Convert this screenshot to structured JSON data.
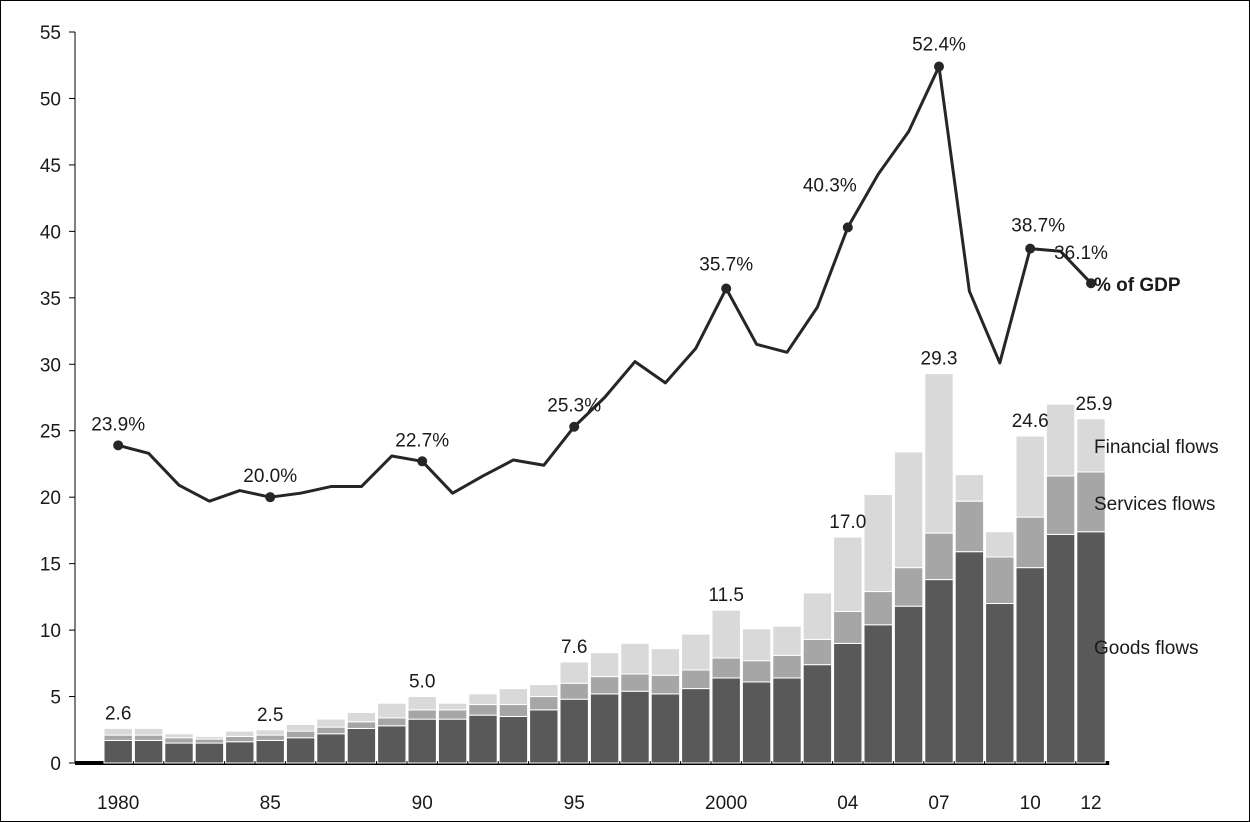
{
  "chart_data": {
    "type": "bar",
    "stacked": true,
    "x": [
      "1980",
      "1981",
      "1982",
      "1983",
      "1984",
      "1985",
      "1986",
      "1987",
      "1988",
      "1989",
      "1990",
      "1991",
      "1992",
      "1993",
      "1994",
      "1995",
      "1996",
      "1997",
      "1998",
      "1999",
      "2000",
      "2001",
      "2002",
      "2003",
      "2004",
      "2005",
      "2006",
      "2007",
      "2008",
      "2009",
      "2010",
      "2011",
      "2012"
    ],
    "x_tick_labels": [
      {
        "x": "1980",
        "label": "1980"
      },
      {
        "x": "1985",
        "label": "85"
      },
      {
        "x": "1990",
        "label": "90"
      },
      {
        "x": "1995",
        "label": "95"
      },
      {
        "x": "2000",
        "label": "2000"
      },
      {
        "x": "2004",
        "label": "04"
      },
      {
        "x": "2007",
        "label": "07"
      },
      {
        "x": "2010",
        "label": "10"
      },
      {
        "x": "2012",
        "label": "12"
      }
    ],
    "ylim": [
      0,
      55
    ],
    "y_ticks": [
      0,
      5,
      10,
      15,
      20,
      25,
      30,
      35,
      40,
      45,
      50,
      55
    ],
    "grid": false,
    "series": [
      {
        "name": "Goods flows",
        "color": "#595959",
        "values": [
          1.7,
          1.7,
          1.5,
          1.5,
          1.6,
          1.7,
          1.9,
          2.2,
          2.6,
          2.8,
          3.3,
          3.3,
          3.6,
          3.5,
          4.0,
          4.8,
          5.2,
          5.4,
          5.2,
          5.6,
          6.4,
          6.1,
          6.4,
          7.4,
          9.0,
          10.4,
          11.8,
          13.8,
          15.9,
          12.0,
          14.7,
          17.2,
          17.4
        ]
      },
      {
        "name": "Services flows",
        "color": "#a6a6a6",
        "values": [
          0.4,
          0.4,
          0.4,
          0.3,
          0.4,
          0.4,
          0.5,
          0.5,
          0.5,
          0.6,
          0.7,
          0.7,
          0.8,
          0.9,
          1.0,
          1.2,
          1.3,
          1.3,
          1.4,
          1.4,
          1.5,
          1.6,
          1.7,
          1.9,
          2.4,
          2.5,
          2.9,
          3.5,
          3.8,
          3.5,
          3.8,
          4.4,
          4.5
        ]
      },
      {
        "name": "Financial flows",
        "color": "#d9d9d9",
        "values": [
          0.5,
          0.5,
          0.3,
          0.2,
          0.4,
          0.4,
          0.5,
          0.6,
          0.7,
          1.1,
          1.0,
          0.5,
          0.8,
          1.2,
          0.9,
          1.6,
          1.8,
          2.3,
          2.0,
          2.7,
          3.6,
          2.4,
          2.2,
          3.5,
          5.6,
          7.3,
          8.7,
          12.0,
          2.0,
          1.9,
          6.1,
          5.4,
          4.0
        ]
      }
    ],
    "bar_data_labels": [
      {
        "x": "1980",
        "label": "2.6"
      },
      {
        "x": "1985",
        "label": "2.5"
      },
      {
        "x": "1990",
        "label": "5.0"
      },
      {
        "x": "1995",
        "label": "7.6"
      },
      {
        "x": "2000",
        "label": "11.5"
      },
      {
        "x": "2004",
        "label": "17.0"
      },
      {
        "x": "2007",
        "label": "29.3"
      },
      {
        "x": "2010",
        "label": "24.6"
      },
      {
        "x": "2012",
        "label": "25.9"
      }
    ],
    "line_series": {
      "name": "% of GDP",
      "color": "#262626",
      "values": [
        23.9,
        23.3,
        20.9,
        19.7,
        20.5,
        20.0,
        20.3,
        20.8,
        20.8,
        23.1,
        22.7,
        20.3,
        21.6,
        22.8,
        22.4,
        25.3,
        27.5,
        30.2,
        28.6,
        31.2,
        35.7,
        31.5,
        30.9,
        34.3,
        40.3,
        44.3,
        47.5,
        52.4,
        35.5,
        30.1,
        38.7,
        38.5,
        36.1
      ],
      "point_labels": [
        {
          "x": "1980",
          "label": "23.9%"
        },
        {
          "x": "1985",
          "label": "20.0%"
        },
        {
          "x": "1990",
          "label": "22.7%"
        },
        {
          "x": "1995",
          "label": "25.3%"
        },
        {
          "x": "2000",
          "label": "35.7%"
        },
        {
          "x": "2004",
          "label": "40.3%"
        },
        {
          "x": "2007",
          "label": "52.4%"
        },
        {
          "x": "2010",
          "label": "38.7%"
        },
        {
          "x": "2012",
          "label": "36.1%"
        }
      ]
    },
    "legend": [
      {
        "series": "Financial flows",
        "label": "Financial flows"
      },
      {
        "series": "Services flows",
        "label": "Services flows"
      },
      {
        "series": "Goods flows",
        "label": "Goods flows"
      }
    ],
    "legend_placement": "right",
    "series_label": "% of GDP"
  }
}
